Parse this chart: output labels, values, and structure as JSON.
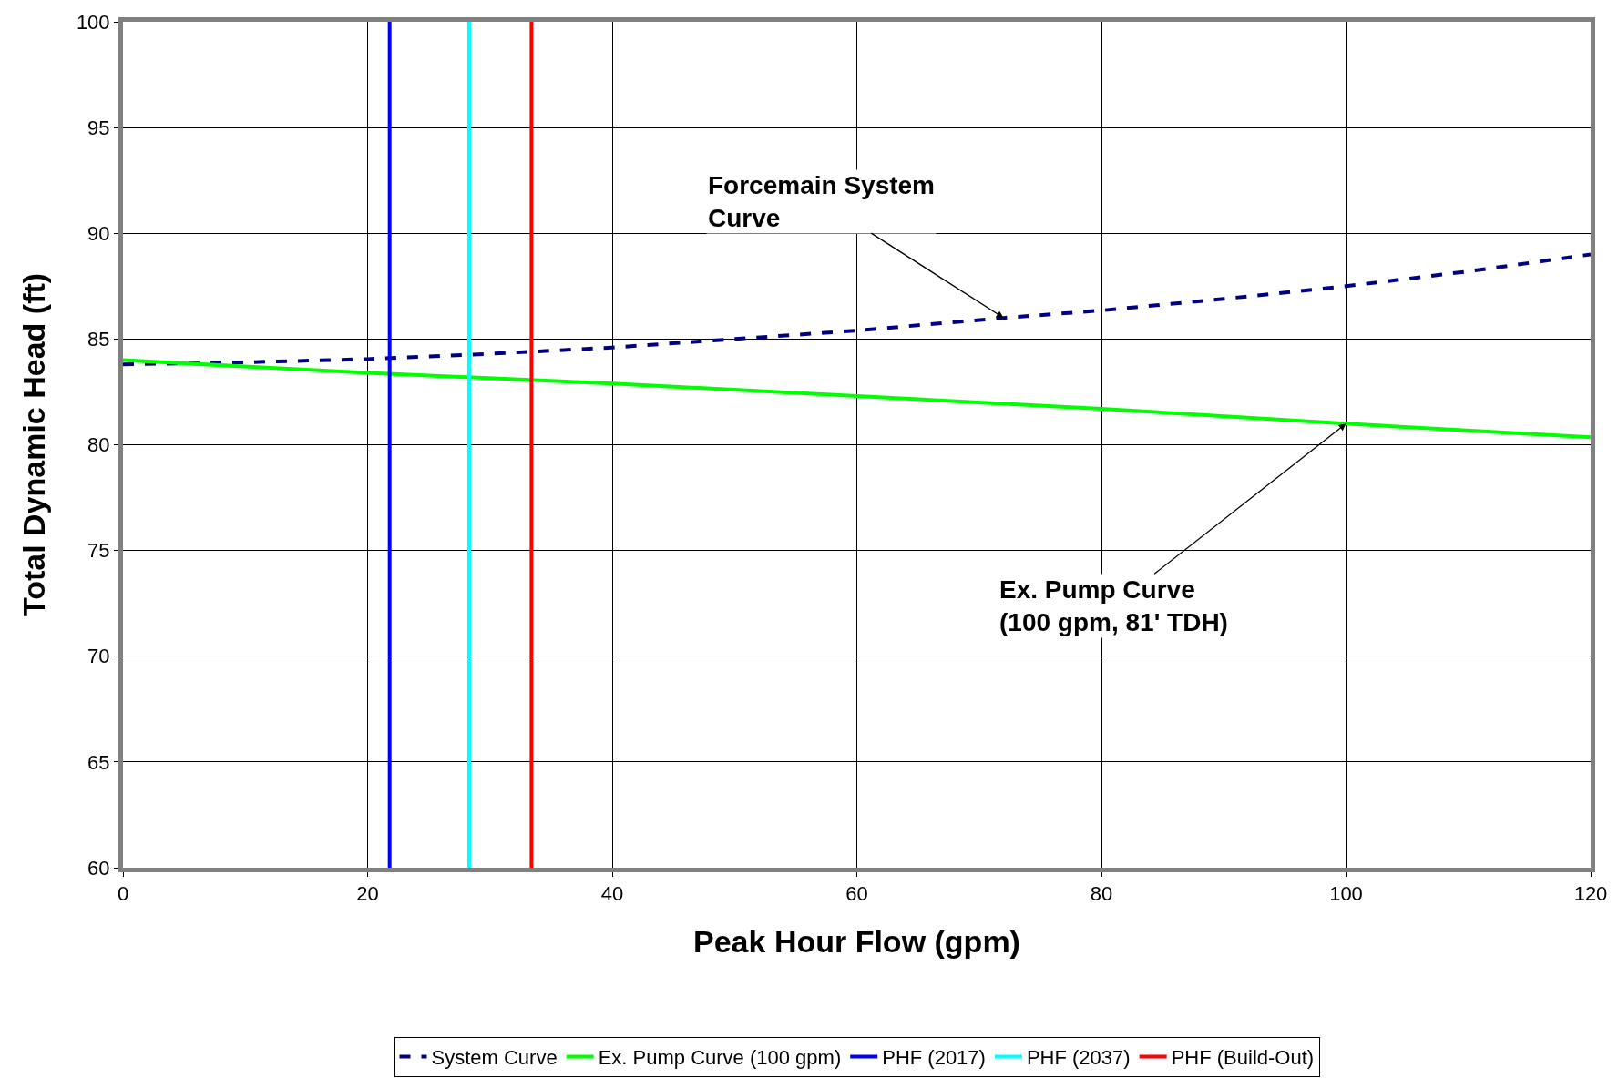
{
  "chart_data": {
    "type": "line",
    "xlabel": "Peak Hour Flow (gpm)",
    "ylabel": "Total Dynamic Head (ft)",
    "xlim": [
      0,
      120
    ],
    "ylim": [
      60,
      100
    ],
    "xticks": [
      0,
      20,
      40,
      60,
      80,
      100,
      120
    ],
    "yticks": [
      60,
      65,
      70,
      75,
      80,
      85,
      90,
      95,
      100
    ],
    "grid": true,
    "legend": "bottom",
    "marker": "none",
    "series": [
      {
        "name": "System Curve",
        "color": "#000080",
        "line_style": "dashed",
        "x": [
          0,
          10,
          20,
          30,
          40,
          50,
          60,
          72,
          80,
          90,
          100,
          110,
          120
        ],
        "values": [
          83.8,
          83.9,
          84.05,
          84.3,
          84.6,
          85.0,
          85.4,
          86.0,
          86.35,
          86.9,
          87.5,
          88.2,
          89.0
        ]
      },
      {
        "name": "Ex. Pump Curve (100 gpm)",
        "color": "#00ff00",
        "line_style": "solid",
        "x": [
          0,
          20,
          40,
          60,
          80,
          100,
          120
        ],
        "values": [
          84.0,
          83.4,
          82.9,
          82.3,
          81.7,
          81.0,
          80.35
        ]
      },
      {
        "name": "PHF (2017)",
        "color": "#0000ff",
        "line_style": "solid",
        "x": [
          21.8,
          21.8
        ],
        "values": [
          60,
          100
        ]
      },
      {
        "name": "PHF (2037)",
        "color": "#00ffff",
        "line_style": "solid",
        "x": [
          28.3,
          28.3
        ],
        "values": [
          60,
          100
        ]
      },
      {
        "name": "PHF (Build-Out)",
        "color": "#ff0000",
        "line_style": "solid",
        "x": [
          33.4,
          33.4
        ],
        "values": [
          60,
          100
        ]
      }
    ],
    "annotations": [
      {
        "text": "Forcemain System\nCurve",
        "x": 72,
        "y": 86
      },
      {
        "text": "Ex. Pump Curve\n(100 gpm, 81' TDH)",
        "x": 100,
        "y": 81
      }
    ]
  }
}
